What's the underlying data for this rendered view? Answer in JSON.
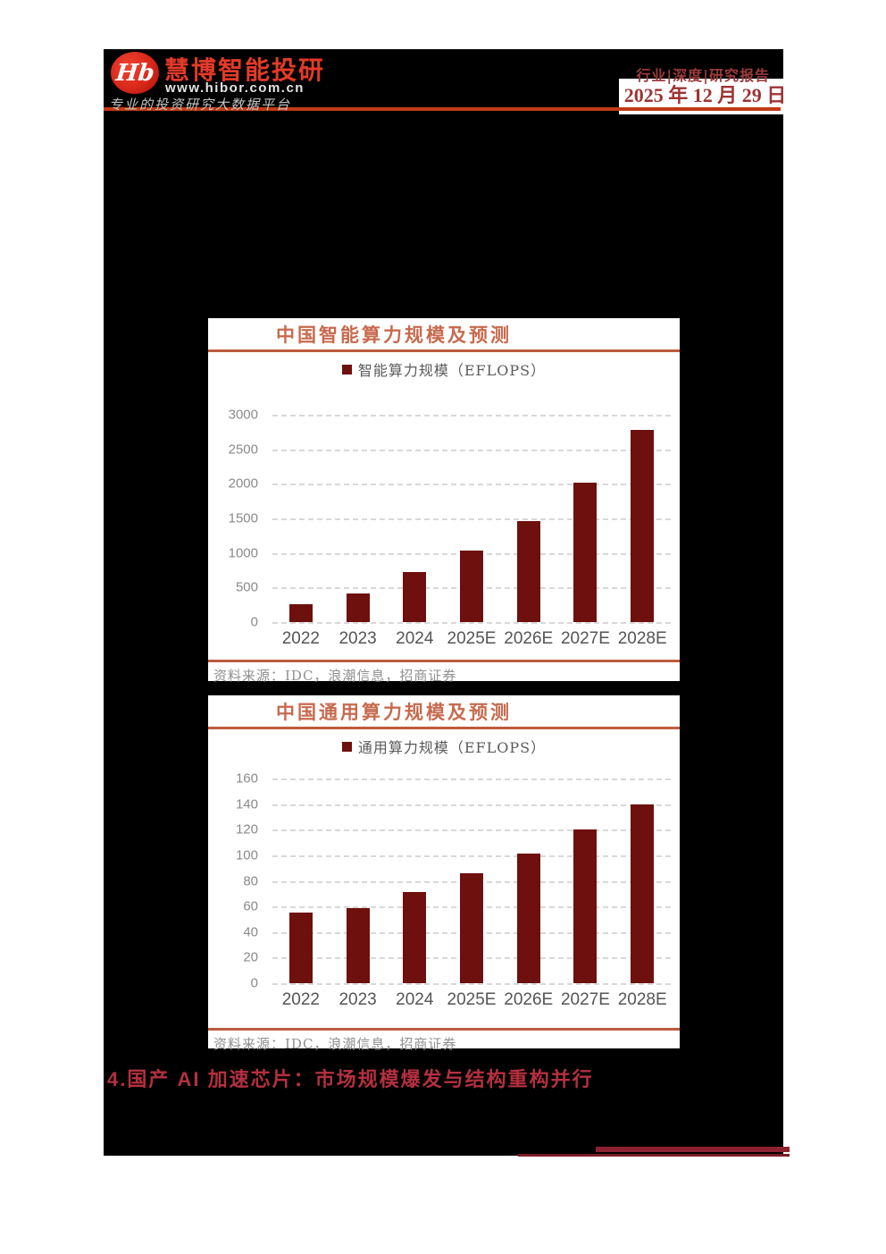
{
  "header": {
    "logo": {
      "monogram": "Hb",
      "brand": "慧博智能投研",
      "url": "www.hibor.com.cn",
      "tagline": "专业的投资研究大数据平台"
    },
    "report_type": "行业|深度|研究报告",
    "date": "2025 年 12 月 29 日"
  },
  "chart_data": [
    {
      "type": "bar",
      "title": "中国智能算力规模及预测",
      "legend": "智能算力规模（EFLOPS）",
      "legend_position": "top",
      "categories": [
        "2022",
        "2023",
        "2024",
        "2025E",
        "2026E",
        "2027E",
        "2028E"
      ],
      "values": [
        260,
        414,
        725,
        1037,
        1460,
        2022,
        2782
      ],
      "ylim": [
        0,
        3000
      ],
      "yticks": [
        3000,
        2500,
        2000,
        1500,
        1000,
        500,
        0
      ],
      "grid": "horizontal-dashed",
      "xlabel": "",
      "ylabel": "",
      "source": "资料来源：IDC，浪潮信息，招商证券"
    },
    {
      "type": "bar",
      "title": "中国通用算力规模及预测",
      "legend": "通用算力规模（EFLOPS）",
      "legend_position": "top",
      "categories": [
        "2022",
        "2023",
        "2024",
        "2025E",
        "2026E",
        "2027E",
        "2028E"
      ],
      "values": [
        55,
        59,
        71,
        86,
        101,
        120,
        140
      ],
      "ylim": [
        0,
        160
      ],
      "yticks": [
        160,
        140,
        120,
        100,
        80,
        60,
        40,
        20,
        0
      ],
      "grid": "horizontal-dashed",
      "xlabel": "",
      "ylabel": "",
      "source": "资料来源：IDC，浪潮信息，招商证券"
    }
  ],
  "section_heading": "4.国产 AI 加速芯片：市场规模爆发与结构重构并行",
  "colors": {
    "page_bg": "#ffffff",
    "panel_bg": "#000000",
    "brand_red": "#e43a28",
    "header_rule": "#c23a16",
    "report_type_red": "#9e3a3a",
    "date_red": "#9c3434",
    "chart_title": "#c76a4e",
    "chart_rule": "#bd5b3e",
    "bar_maroon": "#6e100e",
    "heading_red": "#b43040",
    "footer_rule_dark": "#8e2130"
  }
}
